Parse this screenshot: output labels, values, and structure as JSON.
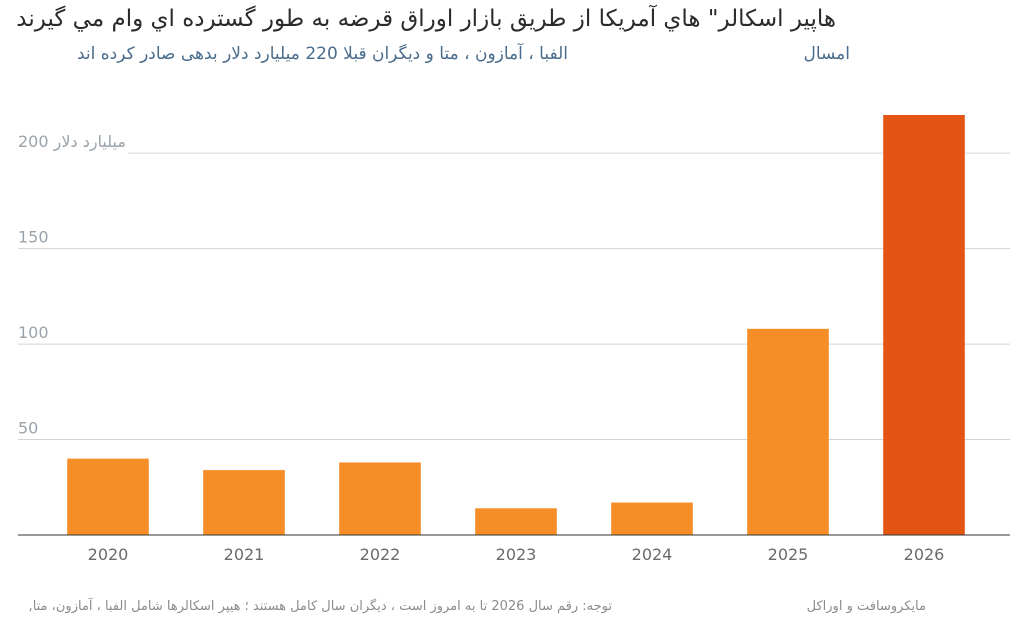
{
  "header": {
    "title": "هاپير اسكالر\" هاي آمريكا از طريق بازار اوراق قرضه به طور گسترده اي وام مي گيرند",
    "subtitle": "الفبا ، آمازون ، متا و ديگران قبلا 220 ميليارد دلار بدهی صادر کرده اند",
    "subtitle_word": "امسال"
  },
  "footer": {
    "note": ",توجه: رقم سال 2026 تا به امروز است ، دیگران سال کامل هستند ؛ هیپر اسکالرها شامل الفبا ، آمازون، متا",
    "source": "مایکروسافت و اوراکل"
  },
  "chart_data": {
    "type": "bar",
    "categories": [
      "2020",
      "2021",
      "2022",
      "2023",
      "2024",
      "2025",
      "2026"
    ],
    "values": [
      40,
      34,
      38,
      14,
      17,
      108,
      220
    ],
    "ylim": [
      0,
      220
    ],
    "yticks": [
      50,
      100,
      150,
      200
    ],
    "ytick_labels": [
      "50",
      "100",
      "150",
      "200 میلیارد دلار"
    ],
    "grid": true,
    "colors": {
      "bar": "#f58e26",
      "highlight": "#e45412",
      "grid": "#cfd4d9",
      "axis": "#333333"
    },
    "highlight_category": "2026"
  }
}
